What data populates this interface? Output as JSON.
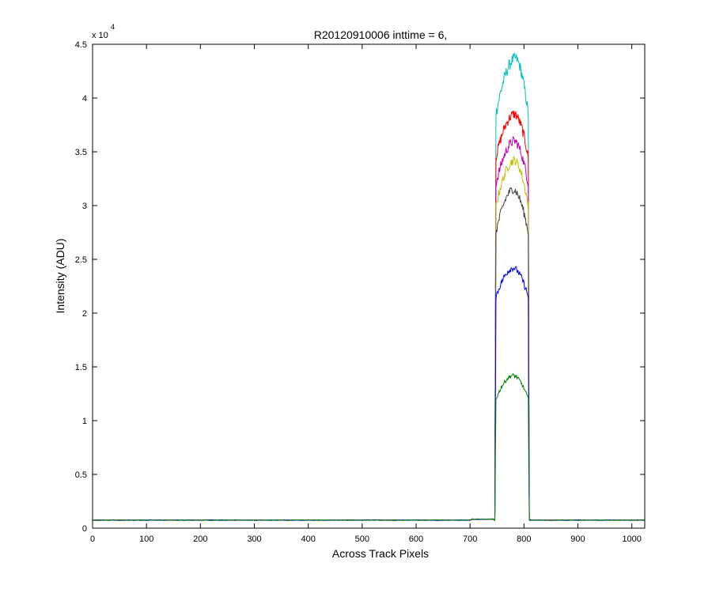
{
  "chart_data": {
    "type": "line",
    "title": "R20120910006 inttime = 6,",
    "xlabel": "Across Track Pixels",
    "ylabel": "Intensity (ADU)",
    "y_scale_label": "x 10",
    "y_scale_exponent": "4",
    "xlim": [
      0,
      1024
    ],
    "ylim": [
      0,
      45000
    ],
    "x_ticks": [
      "0",
      "100",
      "200",
      "300",
      "400",
      "500",
      "600",
      "700",
      "800",
      "900",
      "1000"
    ],
    "y_ticks": [
      "0",
      "0.5",
      "1",
      "1.5",
      "2",
      "2.5",
      "3",
      "3.5",
      "4",
      "4.5"
    ],
    "grid": false,
    "legend": "none",
    "baseline_value": 750,
    "series": [
      {
        "color": "#00bfbf",
        "plateau_left_x": 748,
        "plateau_right_x": 808,
        "edge_value": 38500,
        "peak_x": 784,
        "peak_value": 43700
      },
      {
        "color": "#ff0000",
        "plateau_left_x": 748,
        "plateau_right_x": 808,
        "edge_value": 34500,
        "peak_x": 782,
        "peak_value": 38500
      },
      {
        "color": "#bf00bf",
        "plateau_left_x": 748,
        "plateau_right_x": 808,
        "edge_value": 32000,
        "peak_x": 782,
        "peak_value": 36000
      },
      {
        "color": "#bfbf00",
        "plateau_left_x": 748,
        "plateau_right_x": 808,
        "edge_value": 30000,
        "peak_x": 782,
        "peak_value": 34200
      },
      {
        "color": "#404040",
        "plateau_left_x": 748,
        "plateau_right_x": 808,
        "edge_value": 27500,
        "peak_x": 780,
        "peak_value": 31500
      },
      {
        "color": "#0000ff",
        "plateau_left_x": 748,
        "plateau_right_x": 808,
        "edge_value": 21500,
        "peak_x": 780,
        "peak_value": 24200
      },
      {
        "color": "#008000",
        "plateau_left_x": 748,
        "plateau_right_x": 808,
        "edge_value": 12000,
        "peak_x": 780,
        "peak_value": 14200
      }
    ]
  }
}
